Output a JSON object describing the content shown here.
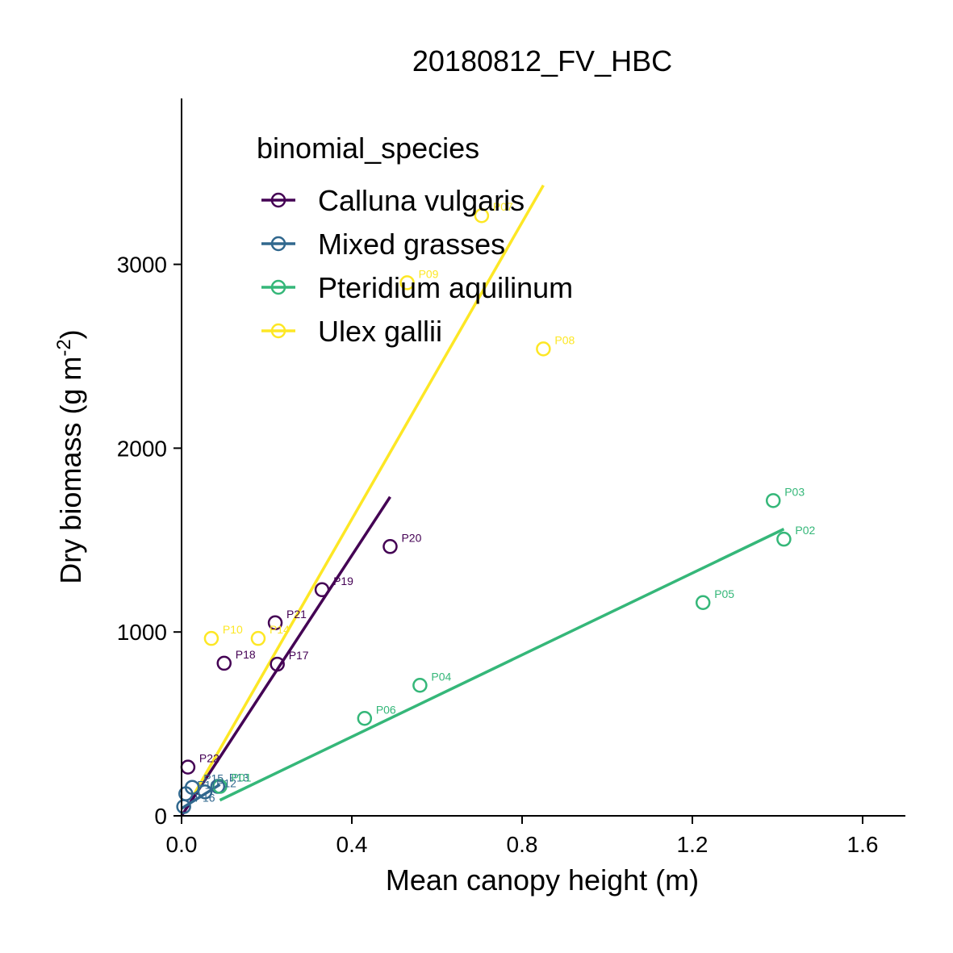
{
  "chart_data": {
    "type": "scatter",
    "title": "20180812_FV_HBC",
    "xlabel": "Mean canopy height (m)",
    "ylabel": "Dry biomass (g m",
    "ylabel_sup": "-2",
    "ylabel_close": ")",
    "xlim": [
      0,
      1.7
    ],
    "ylim": [
      0,
      3900
    ],
    "x_ticks": [
      0.0,
      0.4,
      0.8,
      1.2,
      1.6
    ],
    "x_tick_labels": [
      "0.0",
      "0.4",
      "0.8",
      "1.2",
      "1.6"
    ],
    "y_ticks": [
      0,
      1000,
      2000,
      3000
    ],
    "y_tick_labels": [
      "0",
      "1000",
      "2000",
      "3000"
    ],
    "grid": false,
    "legend": {
      "title": "binomial_species",
      "placement": "top-left"
    },
    "series": [
      {
        "name": "Calluna vulgaris",
        "color": "#440154",
        "points": [
          {
            "x": 0.015,
            "y": 265,
            "label": "P22"
          },
          {
            "x": 0.1,
            "y": 830,
            "label": "P18"
          },
          {
            "x": 0.22,
            "y": 1050,
            "label": "P21"
          },
          {
            "x": 0.225,
            "y": 825,
            "label": "P17"
          },
          {
            "x": 0.33,
            "y": 1230,
            "label": "P19"
          },
          {
            "x": 0.49,
            "y": 1465,
            "label": "P20"
          }
        ],
        "fit": {
          "x": [
            0.0,
            0.49
          ],
          "y": [
            0,
            1735
          ]
        }
      },
      {
        "name": "Mixed grasses",
        "color": "#31688E",
        "points": [
          {
            "x": 0.005,
            "y": 50,
            "label": "P16"
          },
          {
            "x": 0.01,
            "y": 120,
            "label": "P11"
          },
          {
            "x": 0.025,
            "y": 155,
            "label": "P15"
          },
          {
            "x": 0.055,
            "y": 130,
            "label": "P12"
          },
          {
            "x": 0.085,
            "y": 160,
            "label": "P13"
          }
        ],
        "fit": {
          "x": [
            0.0,
            0.09
          ],
          "y": [
            40,
            170
          ]
        }
      },
      {
        "name": "Pteridium aquilinum",
        "color": "#35B779",
        "points": [
          {
            "x": 0.09,
            "y": 160,
            "label": "P01"
          },
          {
            "x": 0.43,
            "y": 530,
            "label": "P06"
          },
          {
            "x": 0.56,
            "y": 710,
            "label": "P04"
          },
          {
            "x": 1.225,
            "y": 1160,
            "label": "P05"
          },
          {
            "x": 1.39,
            "y": 1715,
            "label": "P03"
          },
          {
            "x": 1.415,
            "y": 1505,
            "label": "P02"
          }
        ],
        "fit": {
          "x": [
            0.09,
            1.415
          ],
          "y": [
            85,
            1560
          ]
        }
      },
      {
        "name": "Ulex gallii",
        "color": "#FDE725",
        "points": [
          {
            "x": 0.07,
            "y": 965,
            "label": "P10"
          },
          {
            "x": 0.18,
            "y": 965,
            "label": "P14"
          },
          {
            "x": 0.53,
            "y": 2900,
            "label": "P09"
          },
          {
            "x": 0.705,
            "y": 3265,
            "label": "P07"
          },
          {
            "x": 0.85,
            "y": 2540,
            "label": "P08"
          }
        ],
        "fit": {
          "x": [
            0.03,
            0.85
          ],
          "y": [
            120,
            3430
          ]
        }
      }
    ]
  }
}
